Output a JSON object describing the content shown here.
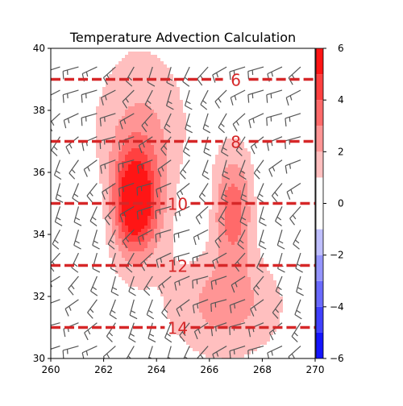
{
  "chart_data": {
    "type": "contour",
    "title": "Temperature Advection Calculation",
    "xlabel": "",
    "ylabel": "",
    "xlim": [
      260,
      270
    ],
    "ylim": [
      30,
      40
    ],
    "x_ticks": [
      260,
      262,
      264,
      266,
      268,
      270
    ],
    "y_ticks": [
      30,
      32,
      34,
      36,
      38,
      40
    ],
    "grid": false,
    "colorbar": {
      "vmin": -6,
      "vmax": 6,
      "ticks": [
        -6,
        -4,
        -2,
        0,
        2,
        4,
        6
      ],
      "levels": [
        -6,
        -5,
        -4,
        -3,
        -2,
        -1,
        1,
        2,
        3,
        4,
        5,
        6
      ],
      "colormap": "bwr"
    },
    "temperature_isotherms": {
      "color": "#d62728",
      "style": "dashed",
      "lines": [
        {
          "y": 39,
          "label": "6",
          "label_x": 267.0
        },
        {
          "y": 37,
          "label": "8",
          "label_x": 267.0
        },
        {
          "y": 35,
          "label": "10",
          "label_x": 264.8
        },
        {
          "y": 33,
          "label": "12",
          "label_x": 264.8
        },
        {
          "y": 31,
          "label": "14",
          "label_x": 264.8
        }
      ]
    },
    "advection_features": [
      {
        "kind": "warm",
        "x": 263.2,
        "y": 35.0,
        "peak": 5.5,
        "sx": 0.55,
        "sy": 1.1
      },
      {
        "kind": "warm",
        "x": 263.4,
        "y": 36.6,
        "peak": 2.0,
        "sx": 1.1,
        "sy": 2.0
      },
      {
        "kind": "warm",
        "x": 266.9,
        "y": 34.8,
        "peak": 3.2,
        "sx": 0.55,
        "sy": 1.2
      },
      {
        "kind": "warm",
        "x": 266.6,
        "y": 31.8,
        "peak": 2.0,
        "sx": 1.3,
        "sy": 1.1
      },
      {
        "kind": "cold",
        "x": 261.1,
        "y": 34.8,
        "peak": -1.2,
        "sx": 0.7,
        "sy": 1.1
      },
      {
        "kind": "cold",
        "x": 265.5,
        "y": 35.0,
        "peak": -1.0,
        "sx": 0.5,
        "sy": 1.1
      },
      {
        "kind": "cold",
        "x": 268.6,
        "y": 34.8,
        "peak": -1.0,
        "sx": 0.7,
        "sy": 1.0
      }
    ],
    "background_advection": 0.5,
    "wind_barbs": {
      "color": "#555555",
      "x_spacing": 0.7,
      "y_spacing": 0.75,
      "shaft_direction_deg": 225,
      "speed_kt": 15
    }
  }
}
